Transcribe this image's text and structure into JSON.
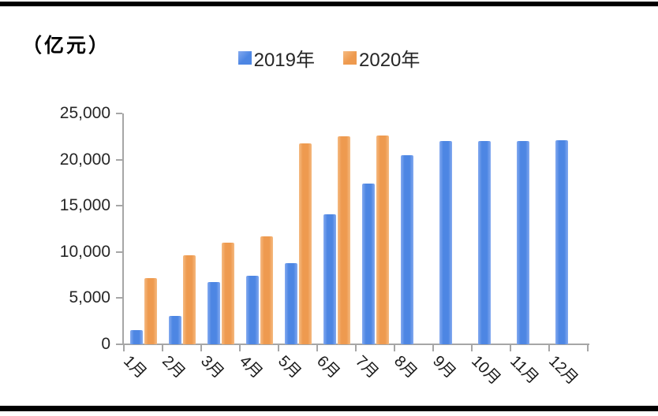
{
  "unit_label": "（亿元）",
  "chart_data": {
    "type": "bar",
    "title": "",
    "unit": "亿元",
    "categories": [
      "1月",
      "2月",
      "3月",
      "4月",
      "5月",
      "6月",
      "7月",
      "8月",
      "9月",
      "10月",
      "11月",
      "12月"
    ],
    "series": [
      {
        "name": "2019年",
        "color": "#4d86e3",
        "edge_color": "#84aaf0",
        "values": [
          1500,
          3100,
          6700,
          7400,
          8800,
          14100,
          17400,
          20500,
          22000,
          22000,
          22000,
          22100
        ]
      },
      {
        "name": "2020年",
        "color": "#ee9a4f",
        "edge_color": "#f5ba81",
        "values": [
          7200,
          9600,
          11000,
          11700,
          21800,
          22500,
          22600,
          null,
          null,
          null,
          null,
          null
        ]
      }
    ],
    "ylim": [
      0,
      25000
    ],
    "yticks": [
      {
        "value": 0,
        "label": "0"
      },
      {
        "value": 5000,
        "label": "5,000"
      },
      {
        "value": 10000,
        "label": "10,000"
      },
      {
        "value": 15000,
        "label": "15,000"
      },
      {
        "value": 20000,
        "label": "20,000"
      },
      {
        "value": 25000,
        "label": "25,000"
      }
    ],
    "legend_position": "top",
    "grid": false,
    "axis_color": "#a6a6a6",
    "text_color": "#262626"
  }
}
